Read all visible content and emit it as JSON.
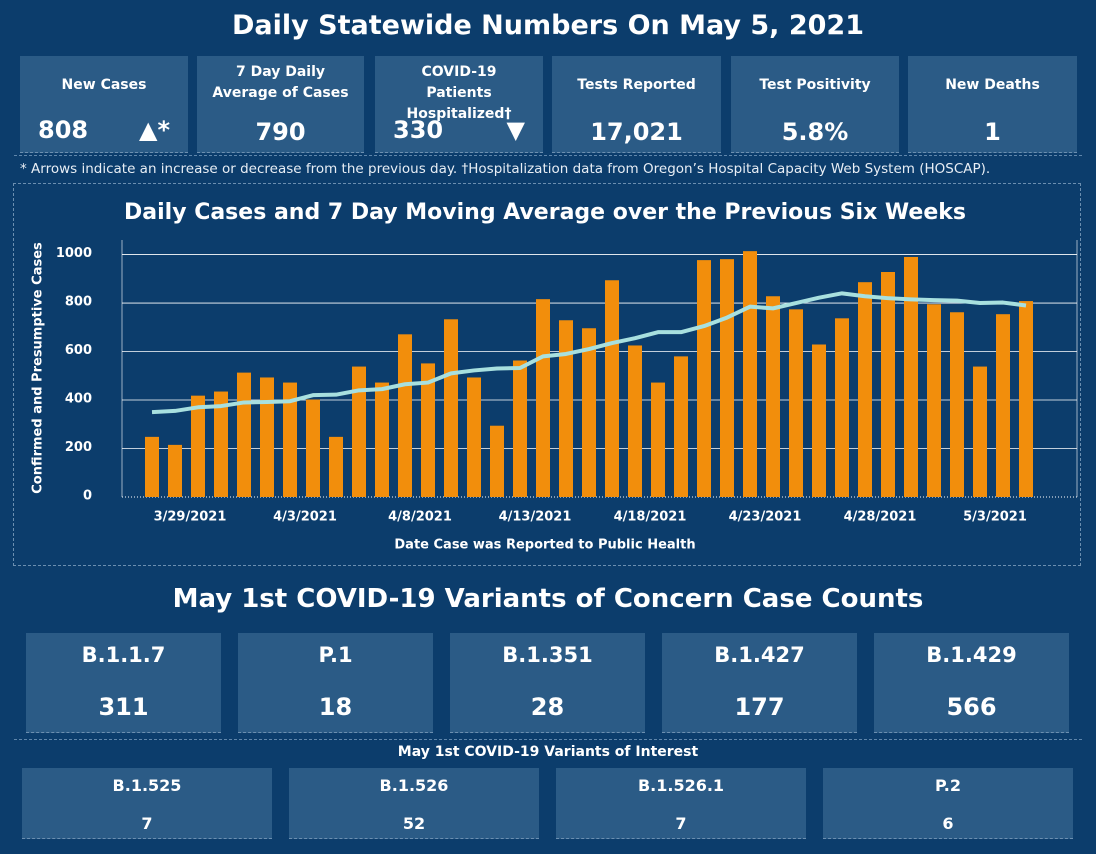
{
  "header": {
    "title": "Daily Statewide Numbers On May 5, 2021"
  },
  "kpis": [
    {
      "label": "New Cases",
      "value": "808",
      "indicator": "▲*"
    },
    {
      "label": "7 Day Daily Average of Cases",
      "value": "790"
    },
    {
      "label": "COVID-19 Patients Hospitalized†",
      "value": "330",
      "indicator": "▼"
    },
    {
      "label": "Tests Reported",
      "value": "17,021"
    },
    {
      "label": "Test Positivity",
      "value": "5.8%"
    },
    {
      "label": "New Deaths",
      "value": "1"
    }
  ],
  "footnote": "* Arrows indicate an increase or decrease from the previous day. †Hospitalization data from Oregon’s Hospital Capacity Web System (HOSCAP).",
  "chart_data": {
    "type": "bar",
    "title": "Daily Cases and 7 Day Moving Average over the Previous Six Weeks",
    "x_label": "Date Case was Reported to Public Health",
    "y_label": "Confirmed and Presumptive Cases",
    "categories": [
      null,
      null,
      "3/29/2021",
      null,
      null,
      null,
      null,
      "4/3/2021",
      null,
      null,
      null,
      null,
      "4/8/2021",
      null,
      null,
      null,
      null,
      "4/13/2021",
      null,
      null,
      null,
      null,
      "4/18/2021",
      null,
      null,
      null,
      null,
      "4/23/2021",
      null,
      null,
      null,
      null,
      "4/28/2021",
      null,
      null,
      null,
      null,
      "5/3/2021",
      null
    ],
    "series": [
      {
        "color": "#f28e0c",
        "values": [
          248,
          215,
          418,
          435,
          513,
          493,
          472,
          402,
          248,
          538,
          472,
          671,
          551,
          733,
          493,
          294,
          563,
          816,
          729,
          696,
          894,
          625,
          472,
          580,
          977,
          981,
          1014,
          828,
          774,
          629,
          737,
          886,
          928,
          990,
          795,
          762,
          538,
          754,
          808
        ]
      },
      {
        "type": "line",
        "color": "#a8e0df",
        "values": [
          350,
          355,
          370,
          375,
          390,
          392,
          395,
          420,
          422,
          440,
          445,
          465,
          472,
          510,
          522,
          530,
          532,
          580,
          590,
          610,
          635,
          655,
          680,
          680,
          705,
          740,
          785,
          778,
          800,
          822,
          840,
          828,
          820,
          815,
          812,
          810,
          800,
          802,
          790
        ]
      }
    ],
    "ylim": [
      0,
      1060
    ],
    "yticks": [
      0,
      200,
      400,
      600,
      800,
      1000
    ],
    "grid": true
  },
  "variants_of_concern": {
    "title": "May 1st  COVID-19 Variants of Concern Case Counts",
    "items": [
      {
        "name": "B.1.1.7",
        "count": "311"
      },
      {
        "name": "P.1",
        "count": "18"
      },
      {
        "name": "B.1.351",
        "count": "28"
      },
      {
        "name": "B.1.427",
        "count": "177"
      },
      {
        "name": "B.1.429",
        "count": "566"
      }
    ]
  },
  "variants_of_interest": {
    "title": "May 1st COVID-19 Variants of Interest",
    "items": [
      {
        "name": "B.1.525",
        "count": "7"
      },
      {
        "name": "B.1.526",
        "count": "52"
      },
      {
        "name": "B.1.526.1",
        "count": "7"
      },
      {
        "name": "P.2",
        "count": "6"
      }
    ]
  }
}
